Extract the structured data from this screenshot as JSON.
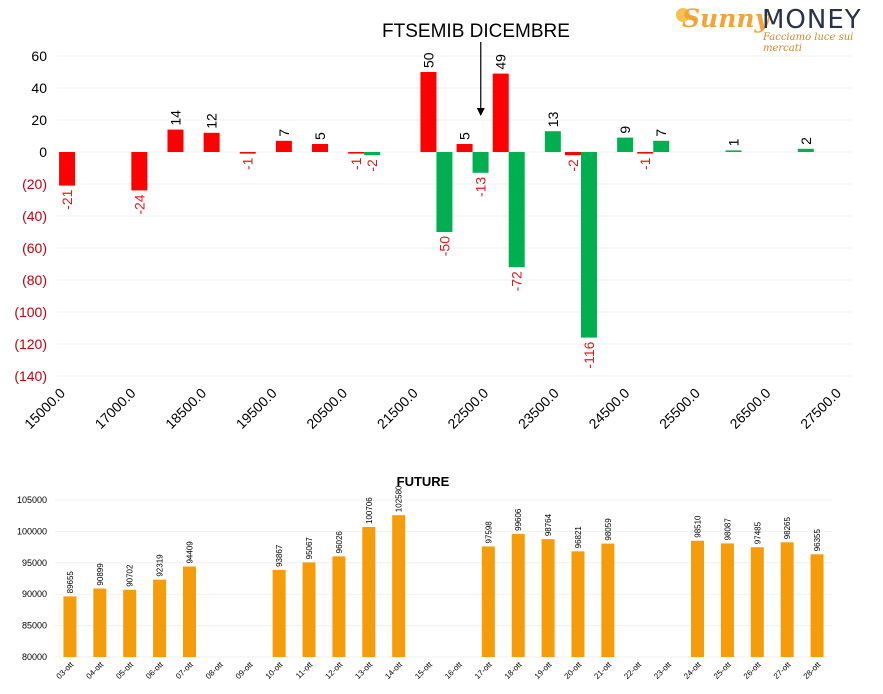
{
  "brand": {
    "logo_sunny": "Sunny",
    "logo_money": "MONEY",
    "logo_tagline": "Facciamo luce sui mercati",
    "colors": {
      "sunny": "#f2a33a",
      "money": "#28324a"
    }
  },
  "chart_data": [
    {
      "type": "bar",
      "title": "FTSEMIB DICEMBRE",
      "xlabel": "",
      "ylabel": "",
      "ylim": [
        -140,
        60
      ],
      "yticks": [
        60,
        40,
        20,
        0,
        -20,
        -40,
        -60,
        -80,
        -100,
        -120,
        -140
      ],
      "ytick_labels": [
        "60",
        "40",
        "20",
        "0",
        "(20)",
        "(40)",
        "(60)",
        "(80)",
        "(100)",
        "(120)",
        "(140)"
      ],
      "xtick_labels": [
        "15000.0",
        "17000.0",
        "18500.0",
        "19500.0",
        "20500.0",
        "21500.0",
        "22500.0",
        "23500.0",
        "24500.0",
        "25500.0",
        "26500.0",
        "27500.0"
      ],
      "annotation": {
        "type": "arrow",
        "near_group": 11
      },
      "groups": 22,
      "colors": {
        "red": "#ff0000",
        "green": "#00b050",
        "negative_label": "#e8181b"
      },
      "series": [
        {
          "color_key": "red",
          "bars": [
            {
              "group": 0,
              "value": -21
            },
            {
              "group": 2,
              "value": -24
            },
            {
              "group": 3,
              "value": 14
            },
            {
              "group": 4,
              "value": 12
            },
            {
              "group": 5,
              "value": -1
            },
            {
              "group": 6,
              "value": 7
            },
            {
              "group": 7,
              "value": 5
            },
            {
              "group": 8,
              "value": -1
            },
            {
              "group": 10,
              "value": 50
            },
            {
              "group": 11,
              "value": 5
            },
            {
              "group": 12,
              "value": 49
            },
            {
              "group": 14,
              "value": -2
            },
            {
              "group": 16,
              "value": -1
            }
          ]
        },
        {
          "color_key": "green",
          "bars": [
            {
              "group": 8,
              "value": -2
            },
            {
              "group": 10,
              "value": -50
            },
            {
              "group": 11,
              "value": -13
            },
            {
              "group": 12,
              "value": -72
            },
            {
              "group": 13,
              "value": 13
            },
            {
              "group": 14,
              "value": -116
            },
            {
              "group": 15,
              "value": 9
            },
            {
              "group": 16,
              "value": 7
            },
            {
              "group": 18,
              "value": 1
            },
            {
              "group": 20,
              "value": 2
            }
          ]
        }
      ]
    },
    {
      "type": "bar",
      "title": "FUTURE",
      "xlabel": "",
      "ylabel": "",
      "ylim": [
        80000,
        105000
      ],
      "yticks": [
        80000,
        85000,
        90000,
        95000,
        100000,
        105000
      ],
      "bar_color": "#f59c0b",
      "categories": [
        "03-ott",
        "04-ott",
        "05-ott",
        "06-ott",
        "07-ott",
        "08-ott",
        "09-ott",
        "10-ott",
        "11-ott",
        "12-ott",
        "13-ott",
        "14-ott",
        "15-ott",
        "16-ott",
        "17-ott",
        "18-ott",
        "19-ott",
        "20-ott",
        "21-ott",
        "22-ott",
        "23-ott",
        "24-ott",
        "25-ott",
        "26-ott",
        "27-ott",
        "28-ott"
      ],
      "values": [
        89655,
        90899,
        90702,
        92319,
        94409,
        null,
        null,
        93867,
        95067,
        96026,
        100706,
        102580,
        null,
        null,
        97598,
        99606,
        98764,
        96821,
        98059,
        null,
        null,
        98510,
        98087,
        97485,
        98265,
        96355
      ]
    }
  ]
}
